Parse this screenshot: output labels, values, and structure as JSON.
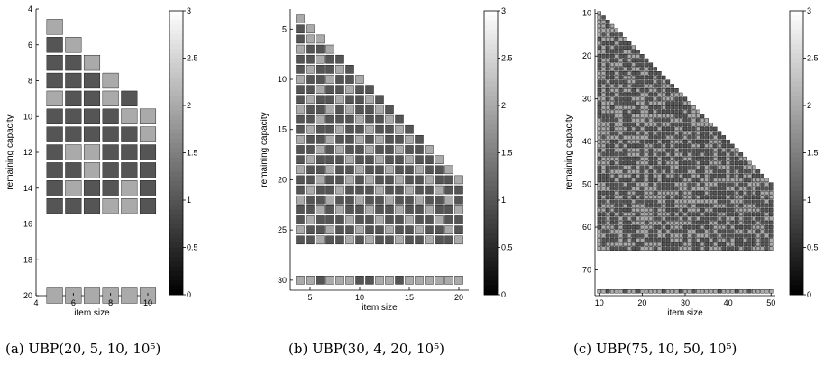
{
  "colormap": {
    "low": "#000000",
    "high": "#ffffff"
  },
  "chart_data": [
    {
      "type": "heatmap",
      "caption": "(a)  UBP(20, 5, 10, 10⁵)",
      "xlabel": "item size",
      "ylabel": "remaining capacity",
      "xlim": [
        4,
        10
      ],
      "ylim": [
        4,
        20
      ],
      "x_ticks": [
        "4",
        "6",
        "8",
        "10"
      ],
      "y_ticks": [
        "4",
        "6",
        "8",
        "10",
        "12",
        "14",
        "16",
        "18",
        "20"
      ],
      "colorbar": {
        "min": 0,
        "max": 3,
        "ticks": [
          "0",
          "0.5",
          "1",
          "1.5",
          "2",
          "2.5",
          "3"
        ]
      },
      "x": [
        5,
        6,
        7,
        8,
        9,
        10
      ],
      "rows": [
        {
          "y": 5,
          "values": [
            2
          ]
        },
        {
          "y": 6,
          "values": [
            1,
            2
          ]
        },
        {
          "y": 7,
          "values": [
            1,
            1,
            2
          ]
        },
        {
          "y": 8,
          "values": [
            1,
            1,
            1,
            2
          ]
        },
        {
          "y": 9,
          "values": [
            2,
            1,
            1,
            2,
            1
          ]
        },
        {
          "y": 10,
          "values": [
            1,
            1,
            1,
            1,
            2,
            2
          ]
        },
        {
          "y": 11,
          "values": [
            1,
            1,
            1,
            1,
            1,
            2
          ]
        },
        {
          "y": 12,
          "values": [
            1,
            2,
            2,
            1,
            1,
            1
          ]
        },
        {
          "y": 13,
          "values": [
            1,
            1,
            2,
            1,
            1,
            1
          ]
        },
        {
          "y": 14,
          "values": [
            1,
            2,
            1,
            1,
            2,
            1
          ]
        },
        {
          "y": 15,
          "values": [
            1,
            1,
            1,
            2,
            2,
            1
          ]
        },
        {
          "y": 20,
          "values": [
            2,
            2,
            2,
            2,
            2,
            2
          ]
        }
      ]
    },
    {
      "type": "heatmap",
      "caption": "(b)  UBP(30, 4, 20, 10⁵)",
      "xlabel": "item size",
      "ylabel": "remaining capacity",
      "xlim": [
        3,
        21
      ],
      "ylim": [
        3,
        31
      ],
      "x_ticks": [
        "5",
        "10",
        "15",
        "20"
      ],
      "y_ticks": [
        "5",
        "10",
        "15",
        "20",
        "25",
        "30"
      ],
      "colorbar": {
        "min": 0,
        "max": 3,
        "ticks": [
          "0",
          "0.5",
          "1",
          "1.5",
          "2",
          "2.5",
          "3"
        ]
      },
      "x_start": 4,
      "x_end": 20,
      "rows": [
        {
          "y": 4,
          "values": [
            2
          ]
        },
        {
          "y": 5,
          "values": [
            1,
            2
          ]
        },
        {
          "y": 6,
          "values": [
            1,
            2,
            2
          ]
        },
        {
          "y": 7,
          "values": [
            2,
            1,
            1,
            2
          ]
        },
        {
          "y": 8,
          "values": [
            1,
            1,
            2,
            1,
            1
          ]
        },
        {
          "y": 9,
          "values": [
            1,
            2,
            1,
            1,
            2,
            1
          ]
        },
        {
          "y": 10,
          "values": [
            2,
            1,
            1,
            2,
            1,
            1,
            2
          ]
        },
        {
          "y": 11,
          "values": [
            1,
            1,
            2,
            1,
            1,
            2,
            1,
            1
          ]
        },
        {
          "y": 12,
          "values": [
            1,
            2,
            1,
            1,
            2,
            1,
            1,
            2,
            1
          ]
        },
        {
          "y": 13,
          "values": [
            2,
            1,
            1,
            2,
            1,
            2,
            1,
            1,
            2,
            1
          ]
        },
        {
          "y": 14,
          "values": [
            1,
            1,
            2,
            1,
            1,
            1,
            2,
            1,
            1,
            2,
            1
          ]
        },
        {
          "y": 15,
          "values": [
            1,
            2,
            1,
            1,
            2,
            1,
            1,
            2,
            1,
            1,
            2,
            1
          ]
        },
        {
          "y": 16,
          "values": [
            2,
            1,
            1,
            2,
            1,
            1,
            2,
            1,
            2,
            1,
            1,
            2,
            1
          ]
        },
        {
          "y": 17,
          "values": [
            1,
            1,
            2,
            1,
            2,
            1,
            1,
            2,
            1,
            1,
            2,
            1,
            1,
            2
          ]
        },
        {
          "y": 18,
          "values": [
            1,
            2,
            1,
            1,
            1,
            2,
            1,
            1,
            2,
            1,
            1,
            2,
            1,
            1,
            2
          ]
        },
        {
          "y": 19,
          "values": [
            2,
            1,
            1,
            2,
            1,
            1,
            2,
            1,
            1,
            2,
            1,
            1,
            2,
            1,
            1,
            2
          ]
        },
        {
          "y": 20,
          "values": [
            1,
            1,
            2,
            1,
            1,
            2,
            1,
            2,
            1,
            1,
            2,
            1,
            1,
            2,
            1,
            1,
            2
          ]
        },
        {
          "y": 21,
          "values": [
            1,
            2,
            1,
            1,
            2,
            1,
            1,
            1,
            2,
            1,
            1,
            2,
            1,
            1,
            2,
            1,
            1
          ]
        },
        {
          "y": 22,
          "values": [
            2,
            1,
            1,
            2,
            1,
            1,
            2,
            1,
            1,
            2,
            1,
            1,
            2,
            1,
            1,
            2,
            1
          ]
        },
        {
          "y": 23,
          "values": [
            1,
            1,
            2,
            1,
            2,
            1,
            1,
            2,
            1,
            1,
            2,
            1,
            1,
            2,
            1,
            1,
            2
          ]
        },
        {
          "y": 24,
          "values": [
            1,
            2,
            1,
            1,
            1,
            2,
            1,
            1,
            2,
            1,
            1,
            2,
            1,
            1,
            2,
            1,
            1
          ]
        },
        {
          "y": 25,
          "values": [
            2,
            1,
            1,
            2,
            1,
            1,
            2,
            1,
            1,
            2,
            1,
            1,
            2,
            1,
            1,
            2,
            1
          ]
        },
        {
          "y": 26,
          "values": [
            1,
            1,
            2,
            1,
            1,
            2,
            1,
            2,
            1,
            1,
            2,
            1,
            1,
            2,
            1,
            1,
            2
          ]
        },
        {
          "y": 30,
          "values": [
            2,
            2,
            1,
            2,
            2,
            2,
            1,
            1,
            2,
            2,
            1,
            2,
            2,
            2,
            2,
            2,
            2
          ]
        }
      ]
    },
    {
      "type": "heatmap",
      "caption": "(c)  UBP(75, 10, 50, 10⁵)",
      "xlabel": "item size",
      "ylabel": "remaining capacity",
      "xlim": [
        9,
        51
      ],
      "ylim": [
        9,
        76
      ],
      "x_ticks": [
        "10",
        "20",
        "30",
        "40",
        "50"
      ],
      "y_ticks": [
        "10",
        "20",
        "30",
        "40",
        "50",
        "60",
        "70"
      ],
      "colorbar": {
        "min": 0,
        "max": 3,
        "ticks": [
          "0",
          "0.5",
          "1",
          "1.5",
          "2",
          "2.5",
          "3"
        ]
      },
      "x_start": 10,
      "x_end": 50,
      "row_start": 10,
      "row_end": 65,
      "pattern": [
        1,
        2,
        1,
        1,
        2,
        2,
        1,
        2,
        1,
        1,
        2,
        1,
        2,
        2,
        1,
        1,
        2,
        1,
        1,
        2,
        2,
        1,
        1,
        2,
        1,
        2
      ],
      "last_row": {
        "y": 75,
        "pattern": [
          2,
          2,
          1,
          2,
          2,
          2,
          1,
          2,
          2,
          1,
          2,
          2,
          2
        ]
      }
    }
  ]
}
